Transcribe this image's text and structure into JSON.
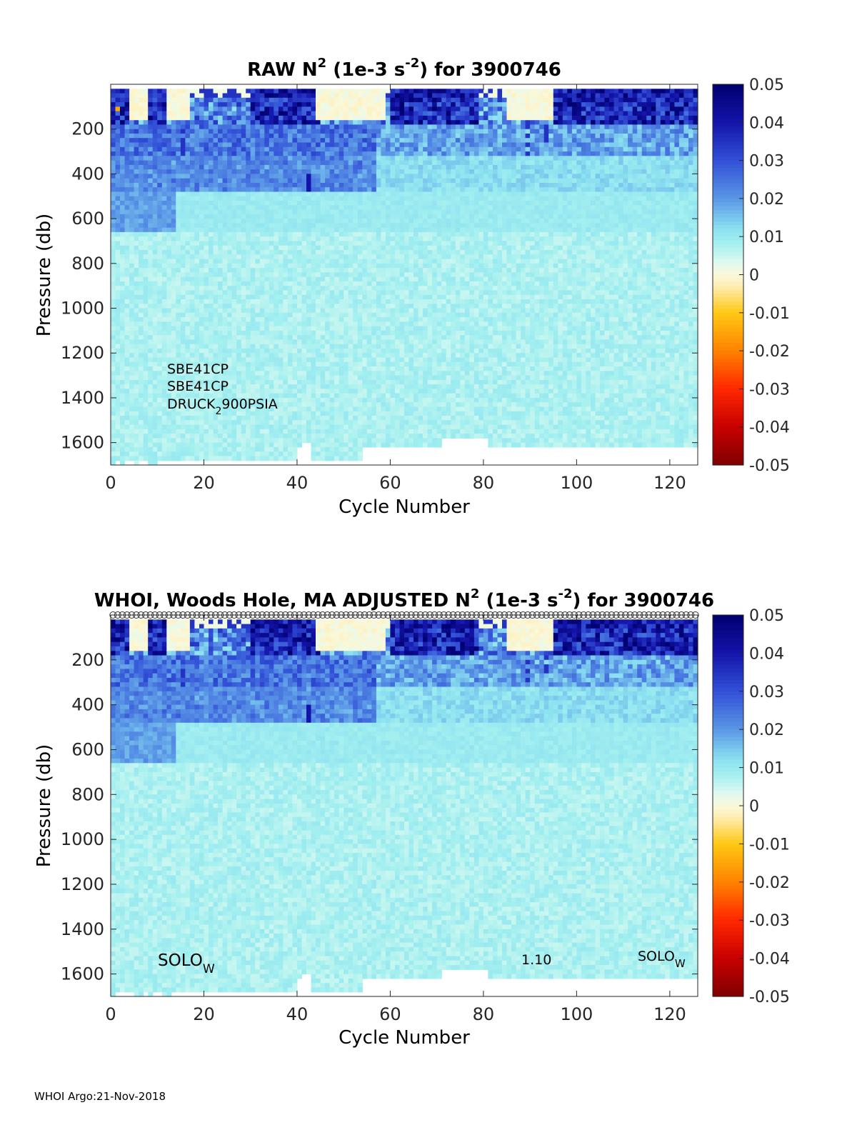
{
  "chart_data": [
    {
      "type": "heatmap",
      "title": "RAW N",
      "title_exponent": "2",
      "title_units_prefix": " (1e-3 s",
      "title_units_exponent": "-2",
      "title_suffix": ") for 3900746",
      "xlabel": "Cycle Number",
      "ylabel": "Pressure (db)",
      "xlim": [
        0,
        126
      ],
      "ylim": [
        1700,
        0
      ],
      "xticks": [
        0,
        20,
        40,
        60,
        80,
        100,
        120
      ],
      "yticks": [
        200,
        400,
        600,
        800,
        1000,
        1200,
        1400,
        1600
      ],
      "clim": [
        -0.05,
        0.05
      ],
      "colorbar_ticks": [
        "0.05",
        "0.04",
        "0.03",
        "0.02",
        "0.01",
        "0",
        "-0.01",
        "-0.02",
        "-0.03",
        "-0.04",
        "-0.05"
      ],
      "annotations": [
        {
          "text": "SBE41CP"
        },
        {
          "text": "SBE41CP"
        },
        {
          "text": "DRUCK",
          "sub": "2",
          "after": "900PSIA"
        }
      ],
      "near_zero_surface_cycles": [
        [
          4,
          7
        ],
        [
          12,
          16
        ],
        [
          44,
          58
        ],
        [
          85,
          94
        ]
      ],
      "high_top_cycles": [
        [
          0,
          3
        ],
        [
          8,
          11
        ],
        [
          30,
          44
        ],
        [
          60,
          78
        ],
        [
          95,
          125
        ]
      ],
      "strong_subsurface_cycles": [
        [
          0,
          14
        ],
        [
          15,
          27
        ],
        [
          28,
          40
        ],
        [
          41,
          45
        ],
        [
          46,
          56
        ]
      ],
      "max_pressure_profile": {
        "default": 1620,
        "cycles_deep": [
          [
            0,
            39
          ],
          [
            43,
            53
          ]
        ],
        "cycles_short": [
          [
            71,
            80
          ]
        ]
      }
    },
    {
      "type": "heatmap",
      "title": "WHOI, Woods Hole, MA  ADJUSTED N",
      "title_exponent": "2",
      "title_units_prefix": " (1e-3 s",
      "title_units_exponent": "-2",
      "title_suffix": ") for 3900746",
      "xlabel": "Cycle Number",
      "ylabel": "Pressure (db)",
      "xlim": [
        0,
        126
      ],
      "ylim": [
        1700,
        0
      ],
      "xticks": [
        0,
        20,
        40,
        60,
        80,
        100,
        120
      ],
      "yticks": [
        200,
        400,
        600,
        800,
        1000,
        1200,
        1400,
        1600
      ],
      "clim": [
        -0.05,
        0.05
      ],
      "colorbar_ticks": [
        "0.05",
        "0.04",
        "0.03",
        "0.02",
        "0.01",
        "0",
        "-0.01",
        "-0.02",
        "-0.03",
        "-0.04",
        "-0.05"
      ],
      "annotations": [
        {
          "text": "SOLO",
          "sub": "W"
        },
        {
          "text": "1.10"
        },
        {
          "text": "SOLO",
          "sub": "W"
        }
      ],
      "qc_marker_cycles_range": [
        1,
        126
      ],
      "near_zero_surface_cycles": [
        [
          4,
          7
        ],
        [
          12,
          16
        ],
        [
          44,
          58
        ],
        [
          85,
          94
        ]
      ],
      "high_top_cycles": [
        [
          0,
          3
        ],
        [
          8,
          11
        ],
        [
          30,
          44
        ],
        [
          60,
          78
        ],
        [
          95,
          125
        ]
      ],
      "strong_subsurface_cycles": [
        [
          0,
          14
        ],
        [
          15,
          27
        ],
        [
          28,
          40
        ],
        [
          41,
          45
        ],
        [
          46,
          56
        ]
      ],
      "max_pressure_profile": {
        "default": 1620,
        "cycles_deep": [
          [
            0,
            39
          ],
          [
            43,
            53
          ]
        ],
        "cycles_short": [
          [
            71,
            80
          ]
        ]
      }
    }
  ],
  "footer": "WHOI Argo:21-Nov-2018"
}
